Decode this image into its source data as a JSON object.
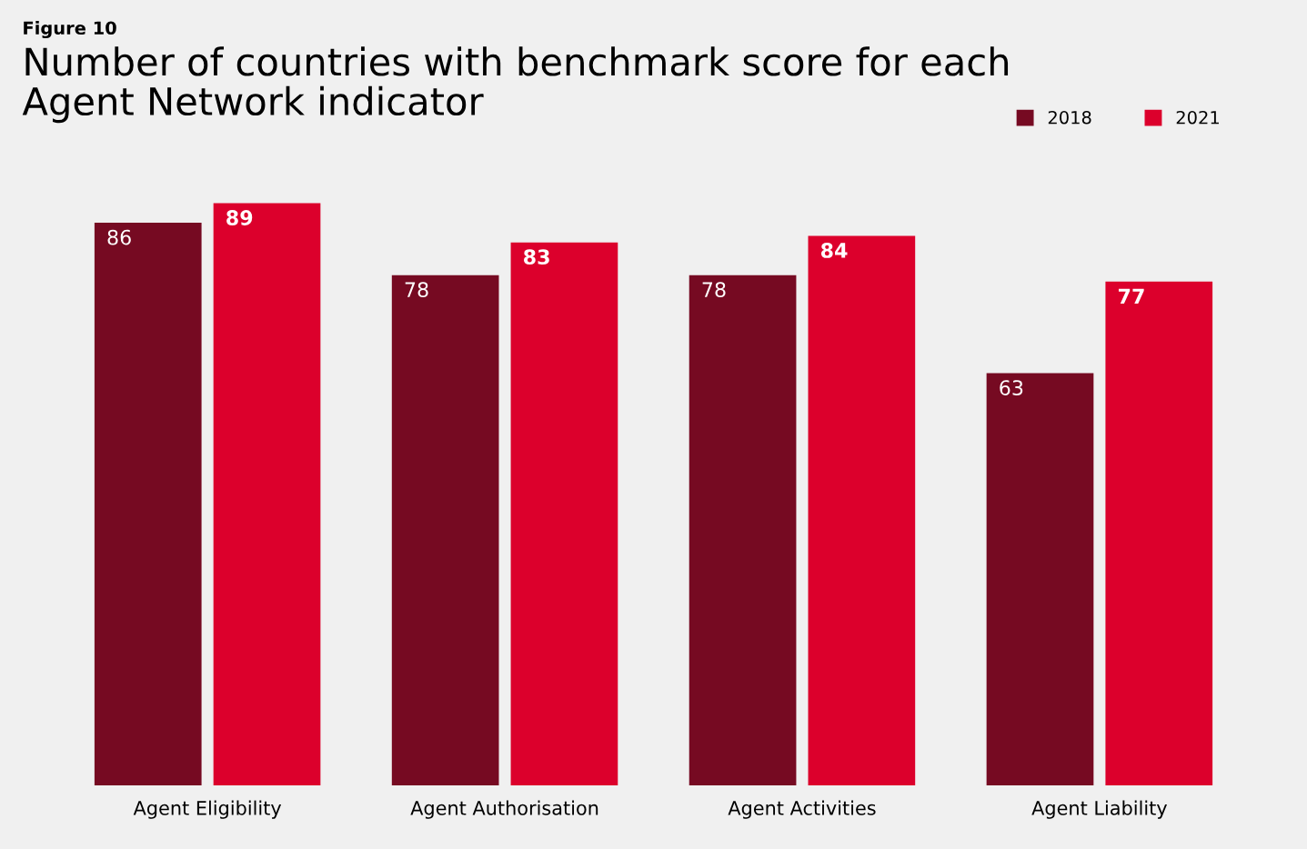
{
  "chart_data": {
    "type": "bar",
    "title": "Number of countries with benchmark score for each\nAgent Network indicator",
    "annotations": [
      "Figure 10"
    ],
    "categories": [
      "Agent Eligibility",
      "Agent Authorisation",
      "Agent Activities",
      "Agent Liability"
    ],
    "series": [
      {
        "name": "2018",
        "color": "#760a22",
        "values": [
          86,
          78,
          78,
          63
        ]
      },
      {
        "name": "2021",
        "color": "#dc002c",
        "values": [
          89,
          83,
          84,
          77
        ]
      }
    ],
    "data_labels": true,
    "legend": "top right",
    "tick_labels": "x",
    "grid": false
  }
}
